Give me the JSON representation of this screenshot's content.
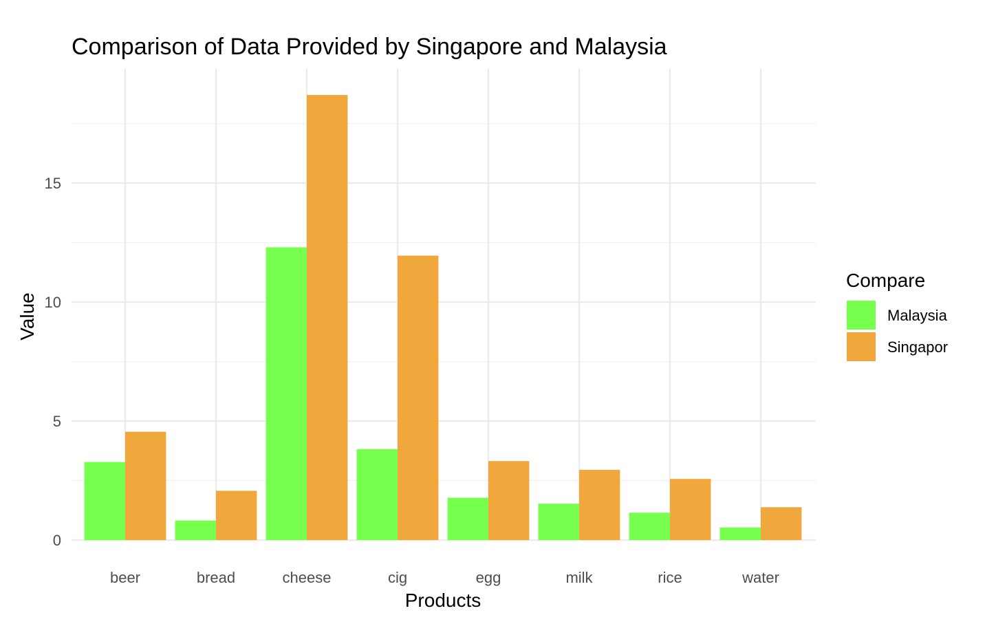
{
  "chart_data": {
    "type": "bar",
    "title": "Comparison of Data Provided by Singapore and Malaysia",
    "xlabel": "Products",
    "ylabel": "Value",
    "categories": [
      "beer",
      "bread",
      "cheese",
      "cig",
      "egg",
      "milk",
      "rice",
      "water"
    ],
    "series": [
      {
        "name": "Malaysia",
        "color": "#76ff4d",
        "values": [
          3.28,
          0.82,
          12.3,
          3.82,
          1.78,
          1.53,
          1.15,
          0.53
        ]
      },
      {
        "name": "Singapor",
        "color": "#f0a83c",
        "values": [
          4.55,
          2.07,
          18.7,
          11.95,
          3.32,
          2.95,
          2.57,
          1.38
        ]
      }
    ],
    "ylim": [
      0,
      19.8
    ],
    "y_ticks": [
      0,
      5,
      10,
      15
    ],
    "y_tick_labels": [
      "0",
      "5",
      "10",
      "15"
    ],
    "grid": true,
    "legend": {
      "title": "Compare",
      "placement": "right"
    },
    "bar_layout": "dodge"
  }
}
